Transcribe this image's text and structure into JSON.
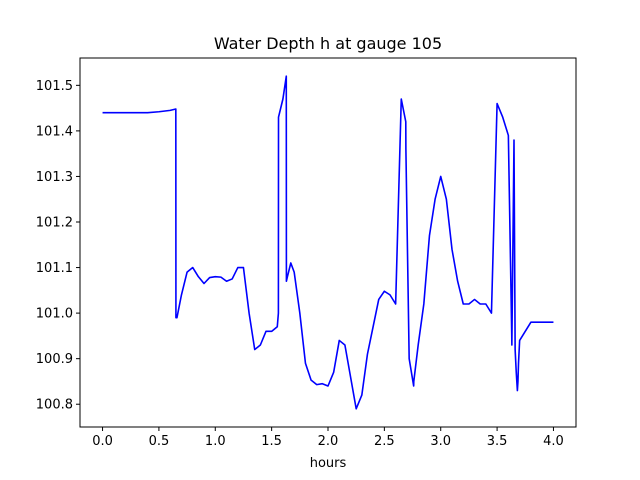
{
  "chart_data": {
    "type": "line",
    "title": "Water Depth h at gauge 105",
    "xlabel": "hours",
    "ylabel": "",
    "xlim": [
      -0.2,
      4.2
    ],
    "ylim": [
      100.75,
      101.56
    ],
    "xticks": [
      0.0,
      0.5,
      1.0,
      1.5,
      2.0,
      2.5,
      3.0,
      3.5,
      4.0
    ],
    "xtick_labels": [
      "0.0",
      "0.5",
      "1.0",
      "1.5",
      "2.0",
      "2.5",
      "3.0",
      "3.5",
      "4.0"
    ],
    "yticks": [
      100.8,
      100.9,
      101.0,
      101.1,
      101.2,
      101.3,
      101.4,
      101.5
    ],
    "ytick_labels": [
      "100.8",
      "100.9",
      "101.0",
      "101.1",
      "101.2",
      "101.3",
      "101.4",
      "101.5"
    ],
    "grid": false,
    "series": [
      {
        "color": "#0000ff",
        "x": [
          0.0,
          0.1,
          0.2,
          0.3,
          0.4,
          0.5,
          0.6,
          0.65,
          0.651,
          0.66,
          0.7,
          0.75,
          0.8,
          0.85,
          0.9,
          0.95,
          1.0,
          1.05,
          1.1,
          1.15,
          1.2,
          1.25,
          1.3,
          1.35,
          1.4,
          1.45,
          1.5,
          1.55,
          1.56,
          1.561,
          1.6,
          1.63,
          1.631,
          1.64,
          1.67,
          1.7,
          1.75,
          1.8,
          1.85,
          1.9,
          1.95,
          2.0,
          2.05,
          2.1,
          2.15,
          2.2,
          2.25,
          2.3,
          2.35,
          2.4,
          2.45,
          2.5,
          2.55,
          2.6,
          2.65,
          2.69,
          2.691,
          2.72,
          2.76,
          2.761,
          2.8,
          2.85,
          2.9,
          2.95,
          3.0,
          3.05,
          3.1,
          3.15,
          3.2,
          3.25,
          3.3,
          3.35,
          3.4,
          3.45,
          3.5,
          3.55,
          3.6,
          3.63,
          3.631,
          3.65,
          3.66,
          3.67,
          3.68,
          3.685,
          3.69,
          3.7,
          3.75,
          3.8,
          3.85,
          3.9,
          3.95,
          4.0
        ],
        "y": [
          101.44,
          101.44,
          101.44,
          101.44,
          101.44,
          101.442,
          101.445,
          101.448,
          100.99,
          100.99,
          101.04,
          101.09,
          101.1,
          101.08,
          101.065,
          101.078,
          101.08,
          101.079,
          101.07,
          101.075,
          101.1,
          101.1,
          101.0,
          100.92,
          100.93,
          100.96,
          100.96,
          100.97,
          101.0,
          101.43,
          101.47,
          101.52,
          101.07,
          101.08,
          101.11,
          101.09,
          101.0,
          100.89,
          100.853,
          100.843,
          100.845,
          100.84,
          100.87,
          100.94,
          100.93,
          100.86,
          100.79,
          100.82,
          100.91,
          100.97,
          101.03,
          101.048,
          101.04,
          101.02,
          101.47,
          101.42,
          101.36,
          100.9,
          100.84,
          100.85,
          100.93,
          101.02,
          101.17,
          101.25,
          101.3,
          101.25,
          101.14,
          101.07,
          101.02,
          101.02,
          101.03,
          101.02,
          101.02,
          101.0,
          101.46,
          101.43,
          101.39,
          100.95,
          100.93,
          101.38,
          100.92,
          100.87,
          100.83,
          100.85,
          100.89,
          100.94,
          100.96,
          100.98,
          100.98,
          100.98,
          100.98,
          100.98
        ]
      }
    ]
  }
}
